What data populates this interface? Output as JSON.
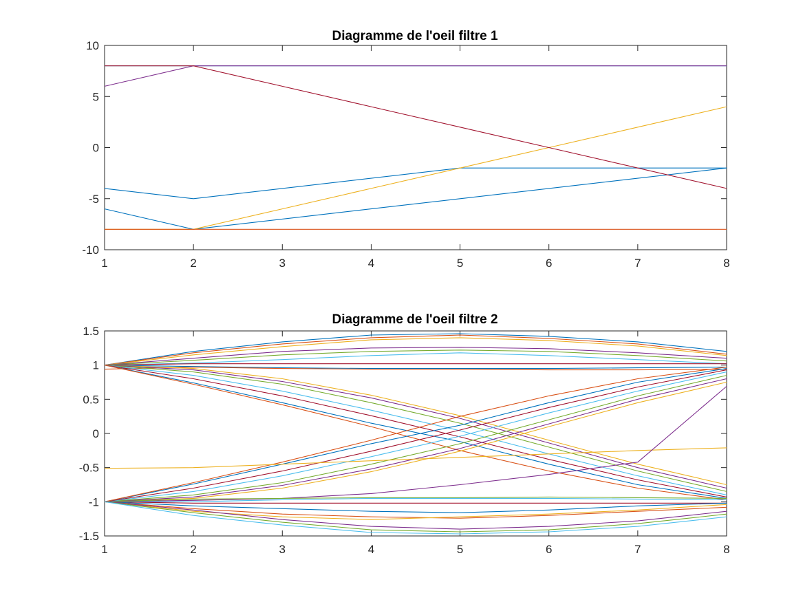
{
  "chart_data": [
    {
      "type": "line",
      "title": "Diagramme de l'oeil filtre 1",
      "xlabel": "",
      "ylabel": "",
      "xlim": [
        1,
        8
      ],
      "ylim": [
        -10,
        10
      ],
      "xticks": [
        1,
        2,
        3,
        4,
        5,
        6,
        7,
        8
      ],
      "yticks": [
        10,
        5,
        0,
        -5,
        -10
      ],
      "grid": false,
      "x": [
        1,
        2,
        3,
        4,
        5,
        6,
        7,
        8
      ],
      "series": [
        {
          "color": "#0072BD",
          "values": [
            -4,
            -5,
            -4,
            -3,
            -2,
            -2,
            -2,
            -2
          ]
        },
        {
          "color": "#0072BD",
          "values": [
            -6,
            -8,
            -7,
            -6,
            -5,
            -4,
            -3,
            -2
          ]
        },
        {
          "color": "#EDB120",
          "values": [
            -8,
            -8,
            -6,
            -4,
            -2,
            0,
            2,
            4
          ]
        },
        {
          "color": "#D95319",
          "values": [
            -8,
            -8,
            -8,
            -8,
            -8,
            -8,
            -8,
            -8
          ]
        },
        {
          "color": "#4DBEEE",
          "values": [
            8,
            8,
            8,
            8,
            8,
            8,
            8,
            8
          ]
        },
        {
          "color": "#7E2F8E",
          "values": [
            6,
            8,
            8,
            8,
            8,
            8,
            8,
            8
          ]
        },
        {
          "color": "#A2142F",
          "values": [
            8,
            8,
            6,
            4,
            2,
            0,
            -2,
            -4
          ]
        }
      ]
    },
    {
      "type": "line",
      "title": "Diagramme de l'oeil filtre 2",
      "xlabel": "",
      "ylabel": "",
      "xlim": [
        1,
        8
      ],
      "ylim": [
        -1.5,
        1.5
      ],
      "xticks": [
        1,
        2,
        3,
        4,
        5,
        6,
        7,
        8
      ],
      "yticks": [
        1.5,
        1,
        0.5,
        0,
        -0.5,
        -1,
        -1.5
      ],
      "grid": false,
      "x": [
        1,
        2,
        3,
        4,
        5,
        6,
        7,
        8
      ],
      "palette": [
        "#0072BD",
        "#D95319",
        "#EDB120",
        "#7E2F8E",
        "#77AC30",
        "#4DBEEE",
        "#A2142F"
      ],
      "series": [
        {
          "values": [
            1,
            1.2,
            1.34,
            1.44,
            1.46,
            1.42,
            1.34,
            1.2
          ]
        },
        {
          "values": [
            1,
            1.18,
            1.31,
            1.4,
            1.44,
            1.39,
            1.31,
            1.16
          ]
        },
        {
          "values": [
            1,
            1.15,
            1.27,
            1.37,
            1.4,
            1.36,
            1.28,
            1.14
          ]
        },
        {
          "values": [
            1,
            1.1,
            1.2,
            1.25,
            1.26,
            1.24,
            1.18,
            1.1
          ]
        },
        {
          "values": [
            1,
            1.07,
            1.15,
            1.2,
            1.22,
            1.2,
            1.14,
            1.06
          ]
        },
        {
          "values": [
            1,
            1.03,
            1.08,
            1.14,
            1.18,
            1.14,
            1.08,
            1.02
          ]
        },
        {
          "values": [
            1,
            1.02,
            1.02,
            1.02,
            1.02,
            1.02,
            1.02,
            1.02
          ]
        },
        {
          "values": [
            1,
            0.98,
            0.96,
            0.95,
            0.95,
            0.95,
            0.96,
            0.97
          ]
        },
        {
          "values": [
            0.94,
            0.97,
            0.95,
            0.94,
            0.94,
            0.93,
            0.93,
            0.94
          ]
        },
        {
          "values": [
            1,
            0.95,
            0.8,
            0.56,
            0.26,
            -0.1,
            -0.45,
            -0.75
          ]
        },
        {
          "values": [
            1,
            0.93,
            0.76,
            0.52,
            0.22,
            -0.14,
            -0.5,
            -0.8
          ]
        },
        {
          "values": [
            1,
            0.9,
            0.72,
            0.45,
            0.15,
            -0.2,
            -0.55,
            -0.85
          ]
        },
        {
          "values": [
            1,
            0.85,
            0.62,
            0.34,
            0.04,
            -0.3,
            -0.62,
            -0.9
          ]
        },
        {
          "values": [
            1,
            0.8,
            0.55,
            0.26,
            -0.05,
            -0.38,
            -0.68,
            -0.93
          ]
        },
        {
          "values": [
            1,
            0.74,
            0.45,
            0.15,
            -0.12,
            -0.45,
            -0.75,
            -0.95
          ]
        },
        {
          "values": [
            1,
            0.72,
            0.42,
            0.1,
            -0.25,
            -0.55,
            -0.8,
            -0.97
          ]
        },
        {
          "values": [
            -1,
            -0.95,
            -0.8,
            -0.56,
            -0.26,
            0.1,
            0.45,
            0.75
          ]
        },
        {
          "values": [
            -1,
            -0.93,
            -0.76,
            -0.52,
            -0.22,
            0.14,
            0.5,
            0.8
          ]
        },
        {
          "values": [
            -1,
            -0.9,
            -0.72,
            -0.45,
            -0.15,
            0.2,
            0.55,
            0.85
          ]
        },
        {
          "values": [
            -1,
            -0.85,
            -0.62,
            -0.34,
            -0.04,
            0.3,
            0.62,
            0.9
          ]
        },
        {
          "values": [
            -1,
            -0.8,
            -0.55,
            -0.26,
            0.05,
            0.38,
            0.68,
            0.93
          ]
        },
        {
          "values": [
            -1,
            -0.74,
            -0.45,
            -0.15,
            0.12,
            0.45,
            0.75,
            0.95
          ]
        },
        {
          "values": [
            -1,
            -0.72,
            -0.42,
            -0.1,
            0.25,
            0.55,
            0.8,
            0.97
          ]
        },
        {
          "values": [
            -0.51,
            -0.5,
            -0.45,
            -0.4,
            -0.35,
            -0.3,
            -0.25,
            -0.21
          ]
        },
        {
          "values": [
            -1,
            -0.98,
            -0.95,
            -0.88,
            -0.75,
            -0.6,
            -0.42,
            0.69
          ]
        },
        {
          "values": [
            -1,
            -0.96,
            -0.95,
            -0.94,
            -0.94,
            -0.93,
            -0.94,
            -0.95
          ]
        },
        {
          "values": [
            -1,
            -1.0,
            -0.97,
            -0.95,
            -0.95,
            -0.95,
            -0.96,
            -0.97
          ]
        },
        {
          "values": [
            -1,
            -1.02,
            -1.02,
            -1.02,
            -1.02,
            -1.02,
            -1.02,
            -1.02
          ]
        },
        {
          "values": [
            -1,
            -1.06,
            -1.1,
            -1.14,
            -1.16,
            -1.12,
            -1.06,
            -1.02
          ]
        },
        {
          "values": [
            -1,
            -1.1,
            -1.18,
            -1.22,
            -1.24,
            -1.2,
            -1.14,
            -1.08
          ]
        },
        {
          "values": [
            -1,
            -1.14,
            -1.22,
            -1.26,
            -1.22,
            -1.18,
            -1.12,
            -1.04
          ]
        },
        {
          "values": [
            -1,
            -1.12,
            -1.26,
            -1.36,
            -1.4,
            -1.36,
            -1.28,
            -1.14
          ]
        },
        {
          "values": [
            -1,
            -1.16,
            -1.3,
            -1.41,
            -1.44,
            -1.41,
            -1.32,
            -1.18
          ]
        },
        {
          "values": [
            -1,
            -1.2,
            -1.34,
            -1.45,
            -1.47,
            -1.44,
            -1.36,
            -1.22
          ]
        }
      ]
    }
  ]
}
